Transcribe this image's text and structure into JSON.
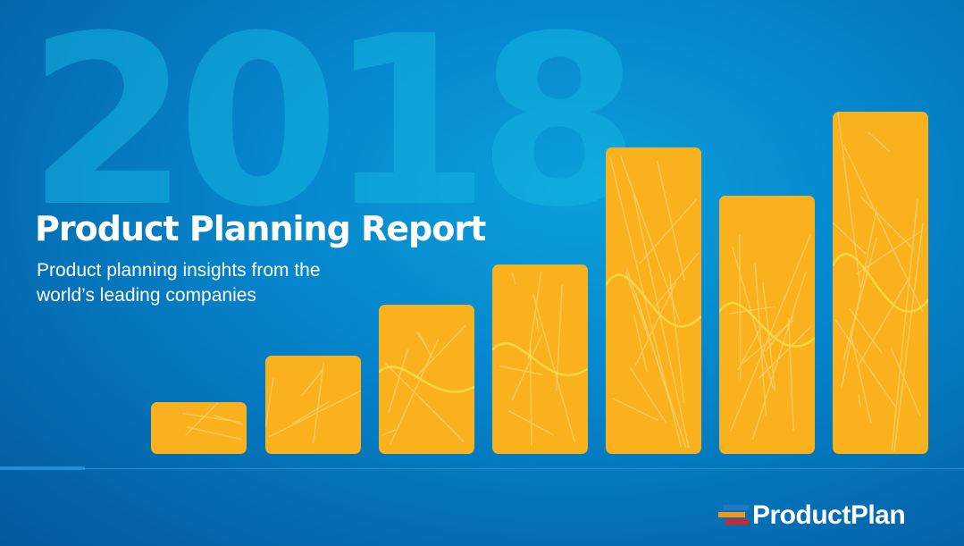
{
  "cover": {
    "year": "2018",
    "title": "Product Planning Report",
    "subtitle_line1": "Product planning insights from the",
    "subtitle_line2": "world’s leading companies"
  },
  "logo": {
    "text": "ProductPlan",
    "colors": [
      "#1f78c8",
      "#f7941d",
      "#d8232a"
    ]
  },
  "colors": {
    "background": "#0585cc",
    "bars": "#f9b21e",
    "year": "#14b4e2"
  },
  "graphic": {
    "bar_count": 7,
    "description_icon": "map-bars"
  }
}
